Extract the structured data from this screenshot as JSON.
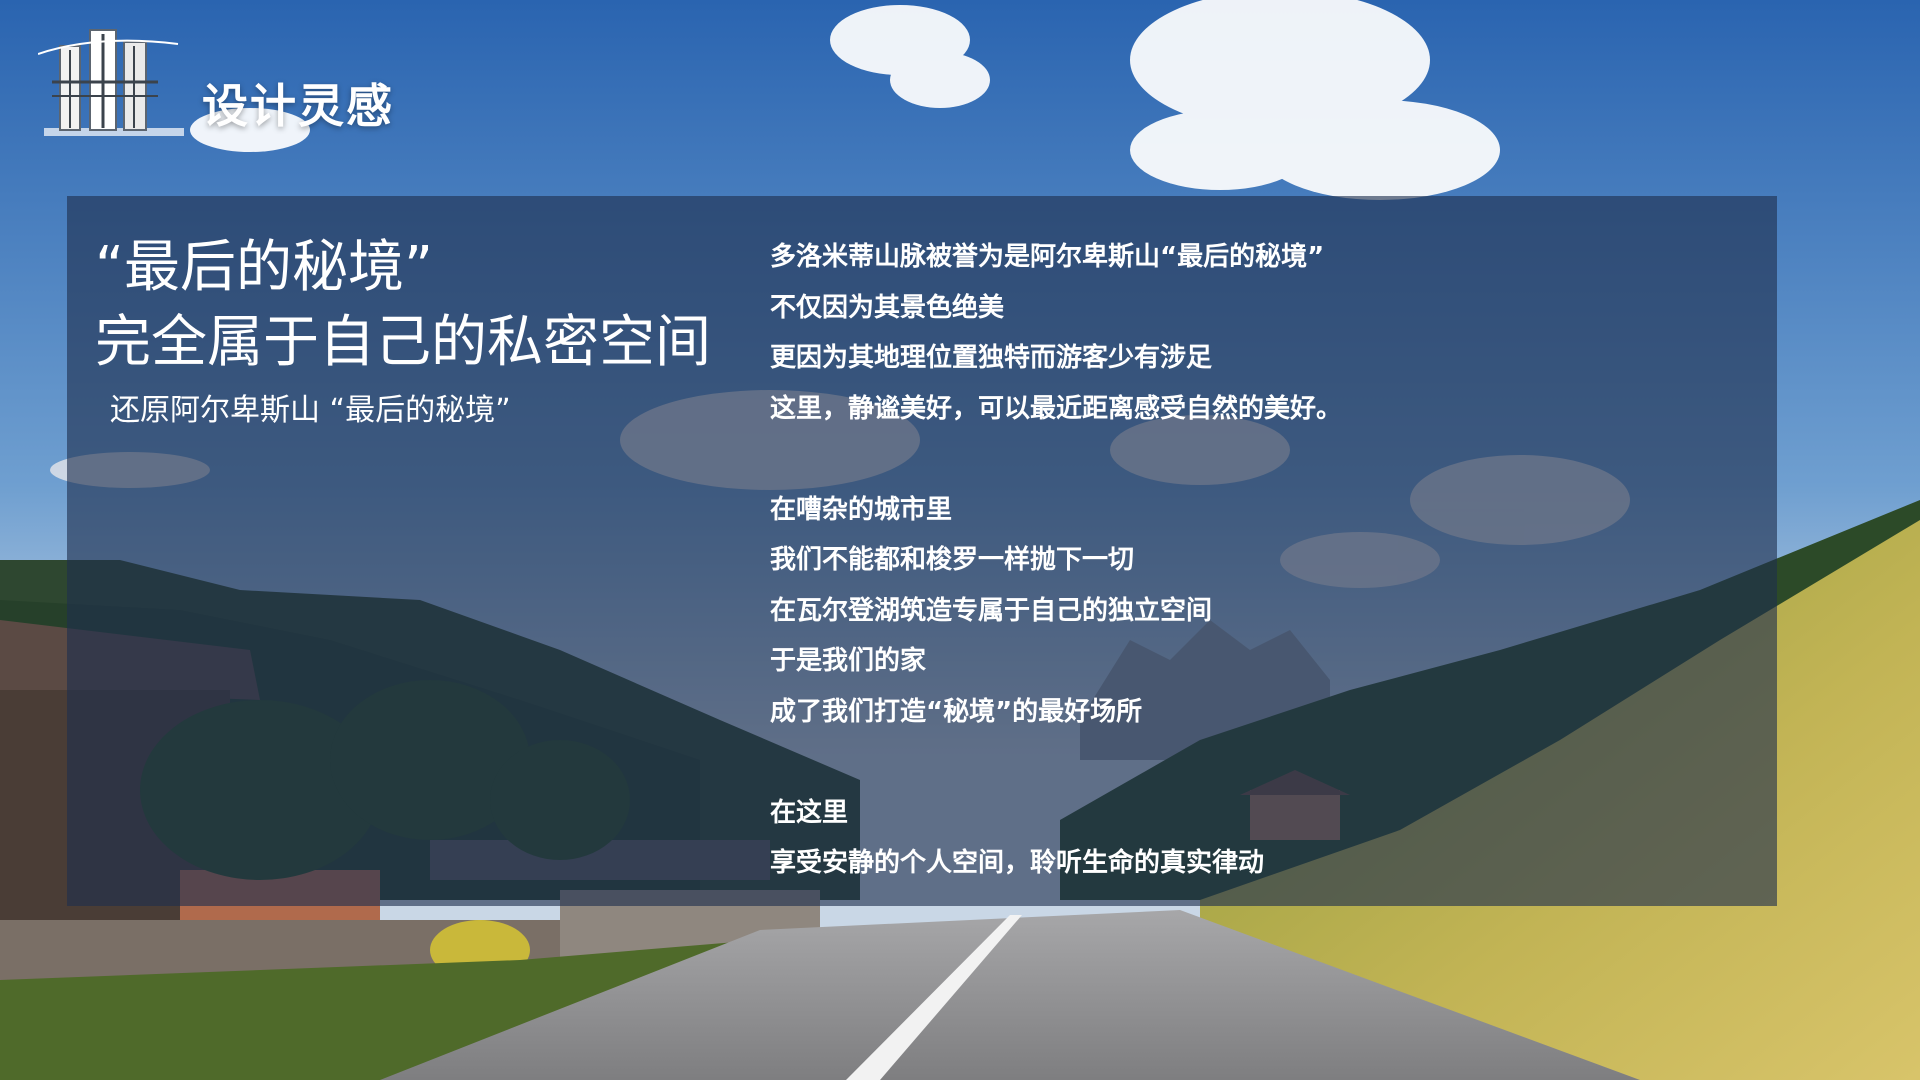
{
  "header": {
    "section_title": "设计灵感",
    "logo_icon": "building-sketch-icon"
  },
  "hero": {
    "headline_line1": "“最后的秘境”",
    "headline_line2": "完全属于自己的私密空间",
    "subheadline": "还原阿尔卑斯山  “最后的秘境”"
  },
  "body": {
    "para1": [
      "多洛米蒂山脉被誉为是阿尔卑斯山“最后的秘境”",
      "不仅因为其景色绝美",
      "更因为其地理位置独特而游客少有涉足",
      "这里，静谧美好，可以最近距离感受自然的美好。"
    ],
    "para2": [
      "在嘈杂的城市里",
      "我们不能都和梭罗一样抛下一切",
      "在瓦尔登湖筑造专属于自己的独立空间",
      "于是我们的家",
      "成了我们打造“秘境”的最好场所"
    ],
    "para3": [
      "在这里",
      "享受安静的个人空间，聆听生命的真实律动"
    ]
  },
  "colors": {
    "sky_top": "#2a64b0",
    "sky_mid": "#6f9fd0",
    "panel_overlay": "#1e2e4e",
    "forest": "#2f4a2a",
    "meadow": "#b8b04a",
    "road": "#8e8e90",
    "text": "#ffffff"
  }
}
